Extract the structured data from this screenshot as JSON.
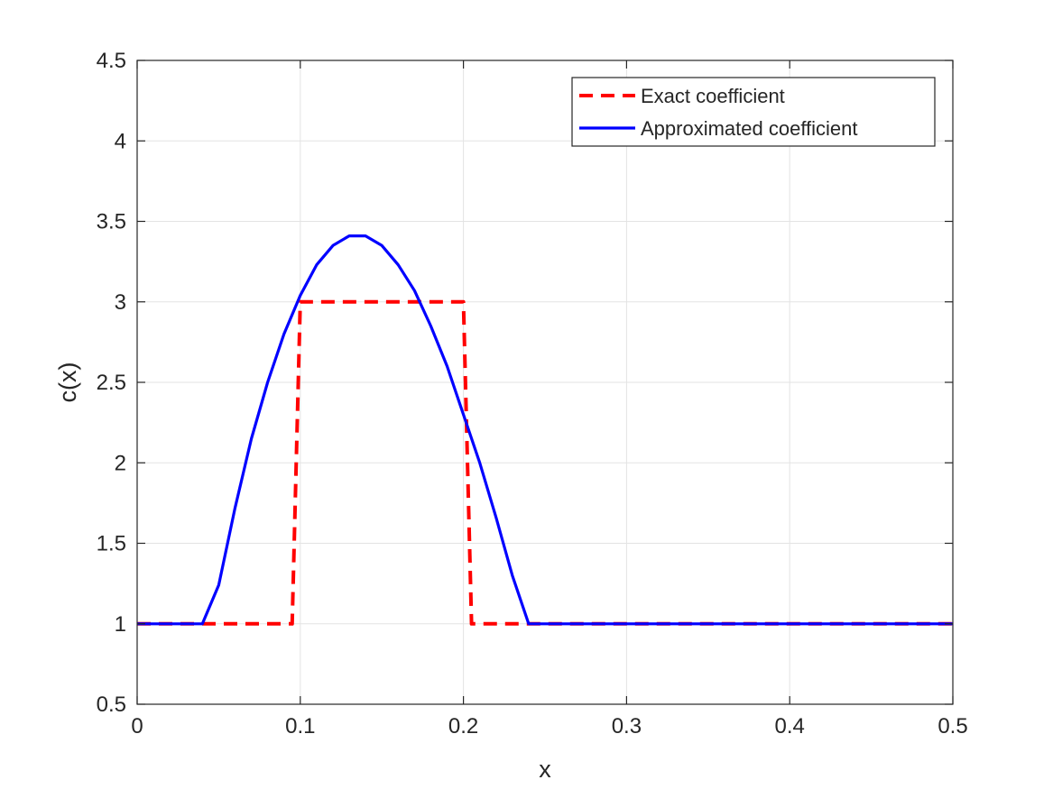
{
  "chart_data": {
    "type": "line",
    "xlabel": "x",
    "ylabel": "c(x)",
    "xlim": [
      0,
      0.5
    ],
    "ylim": [
      0.5,
      4.5
    ],
    "xticks": [
      0,
      0.1,
      0.2,
      0.3,
      0.4,
      0.5
    ],
    "xtick_labels": [
      "0",
      "0.1",
      "0.2",
      "0.3",
      "0.4",
      "0.5"
    ],
    "yticks": [
      0.5,
      1,
      1.5,
      2,
      2.5,
      3,
      3.5,
      4,
      4.5
    ],
    "ytick_labels": [
      "0.5",
      "1",
      "1.5",
      "2",
      "2.5",
      "3",
      "3.5",
      "4",
      "4.5"
    ],
    "grid": true,
    "legend_position": "top-right",
    "series": [
      {
        "name": "Exact coefficient",
        "color": "#ff0000",
        "style": "dashed",
        "x": [
          0,
          0.095,
          0.1,
          0.2,
          0.205,
          0.5
        ],
        "y": [
          1,
          1,
          3,
          3,
          1,
          1
        ]
      },
      {
        "name": "Approximated coefficient",
        "color": "#0000ff",
        "style": "solid",
        "x": [
          0,
          0.02,
          0.04,
          0.05,
          0.06,
          0.07,
          0.08,
          0.09,
          0.1,
          0.11,
          0.12,
          0.13,
          0.14,
          0.15,
          0.16,
          0.17,
          0.18,
          0.19,
          0.2,
          0.21,
          0.22,
          0.23,
          0.24,
          0.3,
          0.4,
          0.5
        ],
        "y": [
          1,
          1,
          1,
          1.24,
          1.72,
          2.15,
          2.5,
          2.8,
          3.04,
          3.23,
          3.35,
          3.41,
          3.41,
          3.35,
          3.23,
          3.07,
          2.85,
          2.6,
          2.3,
          2.0,
          1.66,
          1.3,
          1.0,
          1.0,
          1.0,
          1.0
        ]
      }
    ]
  }
}
